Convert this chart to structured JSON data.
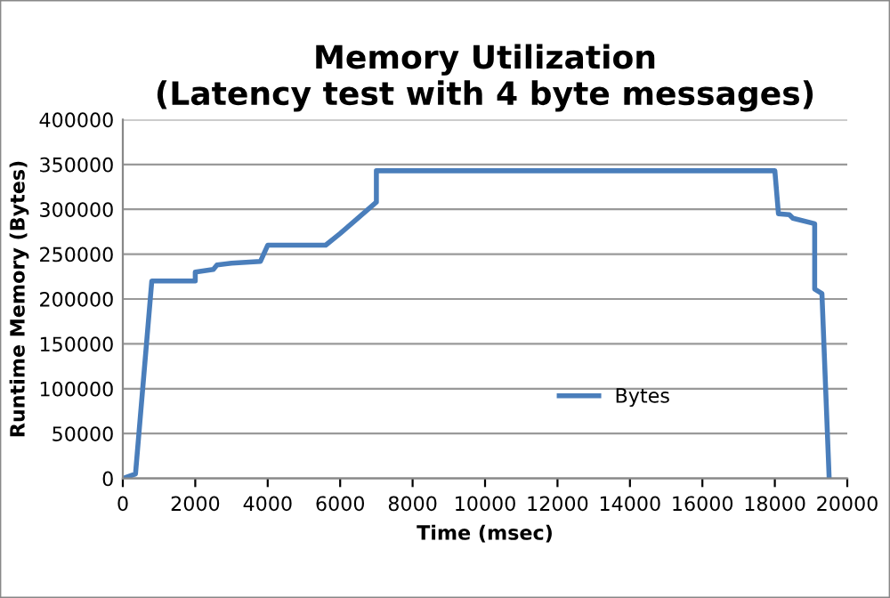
{
  "chart_data": {
    "type": "line",
    "title": "Memory Utilization\n(Latency test with 4 byte messages)",
    "xlabel": "Time (msec)",
    "ylabel": "Runtime Memory (Bytes)",
    "x": [
      0,
      350,
      800,
      2000,
      2000,
      2500,
      2600,
      3000,
      3800,
      4000,
      5600,
      6000,
      7000,
      7000,
      18000,
      18100,
      18400,
      18500,
      19100,
      19100,
      19300,
      19500
    ],
    "series": [
      {
        "name": "Bytes",
        "color": "#4a7ebb",
        "values": [
          0,
          5000,
          220000,
          220000,
          230000,
          233000,
          238000,
          240000,
          242000,
          260000,
          260000,
          273000,
          308000,
          343000,
          343000,
          295000,
          294000,
          290000,
          284000,
          211000,
          206000,
          0
        ]
      }
    ],
    "xlim": [
      0,
      20000
    ],
    "xticks": [
      0,
      2000,
      4000,
      6000,
      8000,
      10000,
      12000,
      14000,
      16000,
      18000,
      20000
    ],
    "ylim": [
      0,
      400000
    ],
    "yticks": [
      0,
      50000,
      100000,
      150000,
      200000,
      250000,
      300000,
      350000,
      400000
    ],
    "grid": "y",
    "legend": "bottom right",
    "marker": "none",
    "line_style": "solid"
  }
}
